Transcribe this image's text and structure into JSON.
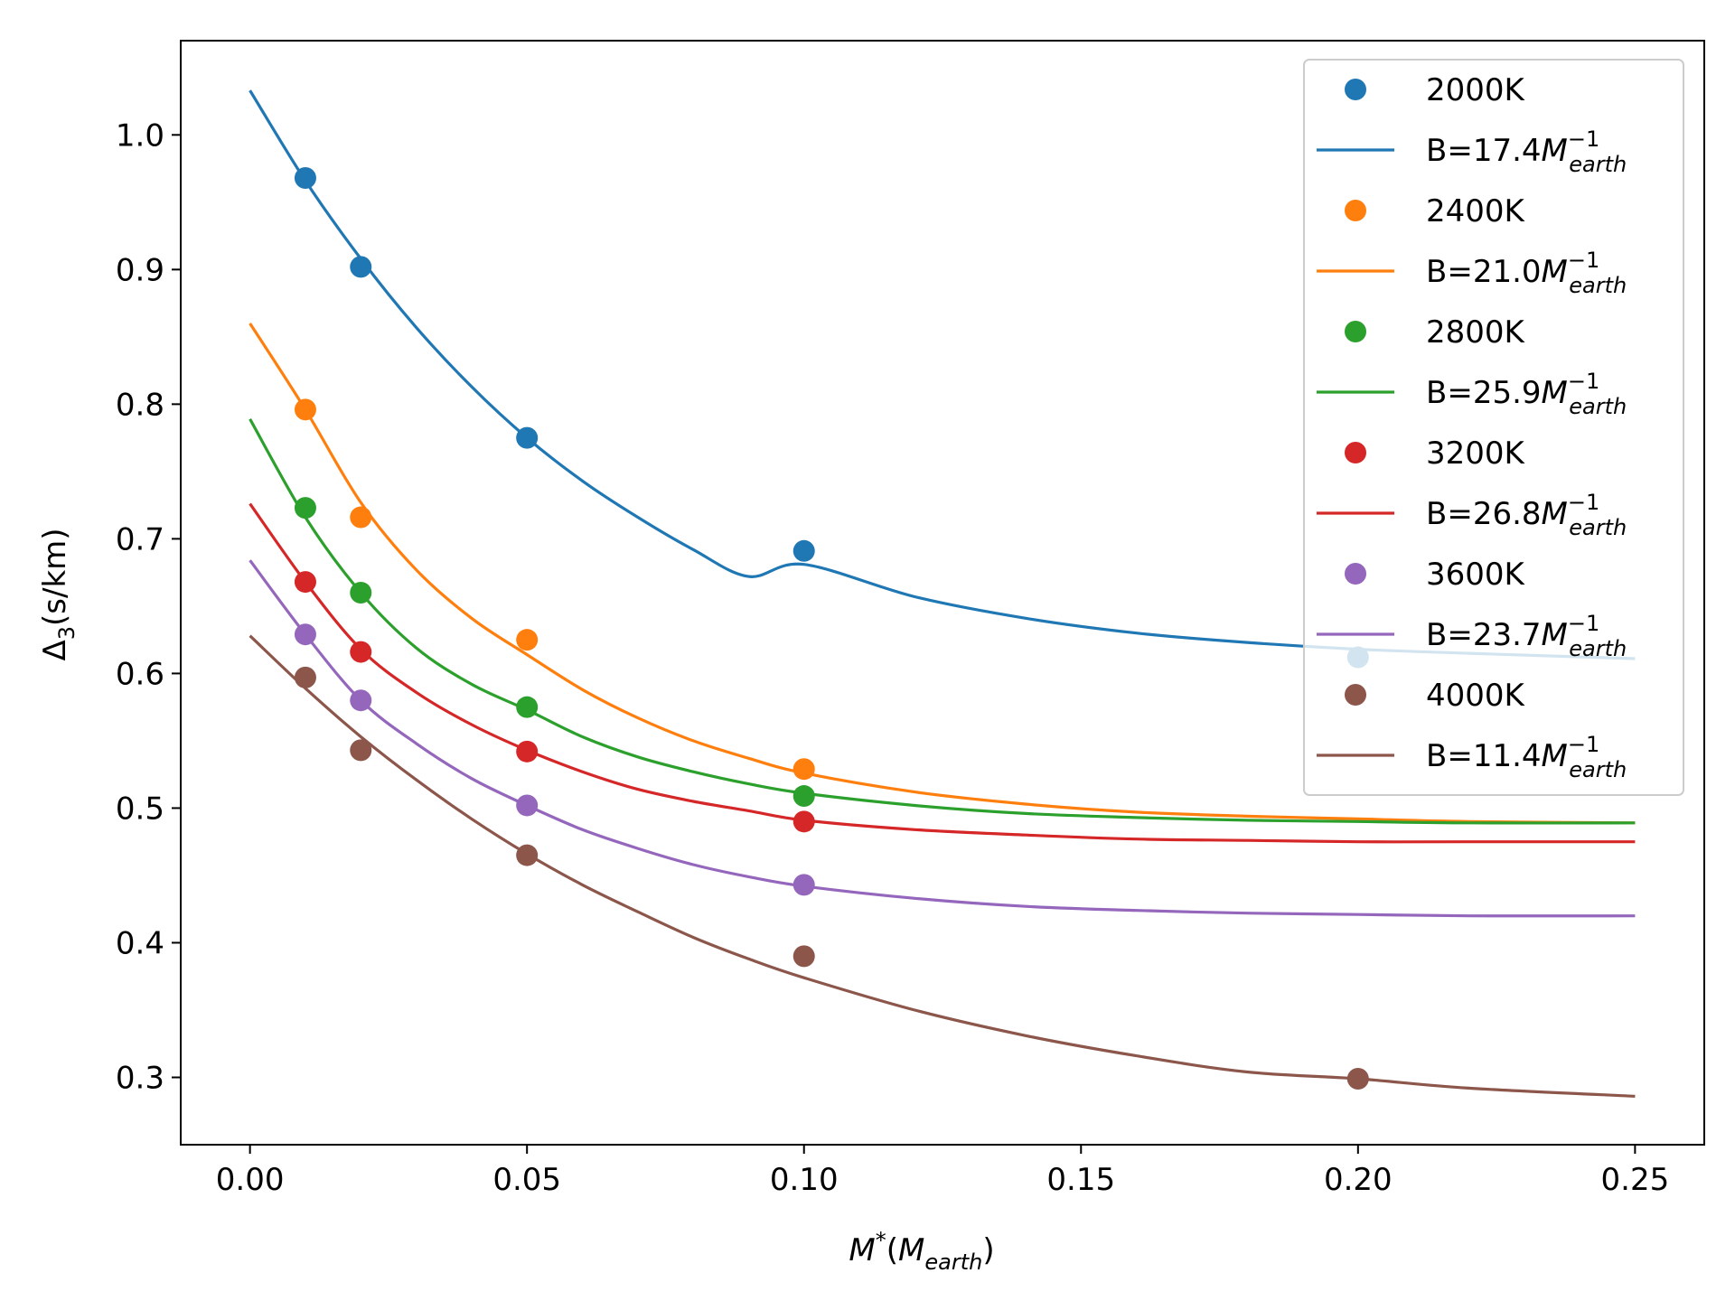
{
  "chart_data": {
    "type": "scatter",
    "xlabel": {
      "italic": "M",
      "sup": "*",
      "open": "(",
      "sub_main": "M",
      "sub": "earth",
      "close": ")"
    },
    "ylabel": {
      "main": "Δ",
      "sub": "3",
      "rest": "(s/km)"
    },
    "xlim": [
      -0.0125,
      0.2625
    ],
    "ylim": [
      0.25,
      1.07
    ],
    "xticks": [
      0.0,
      0.05,
      0.1,
      0.15,
      0.2,
      0.25
    ],
    "xtick_labels": [
      "0.00",
      "0.05",
      "0.10",
      "0.15",
      "0.20",
      "0.25"
    ],
    "yticks": [
      0.3,
      0.4,
      0.5,
      0.6,
      0.7,
      0.8,
      0.9,
      1.0
    ],
    "ytick_labels": [
      "0.3",
      "0.4",
      "0.5",
      "0.6",
      "0.7",
      "0.8",
      "0.9",
      "1.0"
    ],
    "legend_position": "top-right",
    "series": [
      {
        "name": "2000K",
        "color": "#1f77b4",
        "points": [
          [
            0.01,
            0.968
          ],
          [
            0.02,
            0.902
          ],
          [
            0.05,
            0.775
          ],
          [
            0.1,
            0.691
          ],
          [
            0.2,
            0.612
          ]
        ],
        "fit_label": {
          "pre": "B=17.4",
          "var": "M",
          "sup": "−1",
          "sub": "earth"
        },
        "fit": {
          "x": [
            0,
            0.01,
            0.02,
            0.03,
            0.04,
            0.05,
            0.06,
            0.07,
            0.08,
            0.09,
            0.1,
            0.12,
            0.14,
            0.16,
            0.18,
            0.2,
            0.22,
            0.25
          ],
          "y": [
            1.033,
            0.966,
            0.908,
            0.857,
            0.813,
            0.775,
            0.743,
            0.716,
            0.692,
            0.672,
            0.681,
            0.657,
            0.641,
            0.63,
            0.623,
            0.618,
            0.615,
            0.611
          ]
        }
      },
      {
        "name": "2400K",
        "color": "#ff7f0e",
        "points": [
          [
            0.01,
            0.796
          ],
          [
            0.02,
            0.716
          ],
          [
            0.05,
            0.625
          ],
          [
            0.1,
            0.529
          ]
        ],
        "fit_label": {
          "pre": "B=21.0",
          "var": "M",
          "sup": "−1",
          "sub": "earth"
        },
        "fit": {
          "x": [
            0,
            0.01,
            0.02,
            0.03,
            0.04,
            0.05,
            0.06,
            0.07,
            0.08,
            0.09,
            0.1,
            0.12,
            0.14,
            0.16,
            0.18,
            0.2,
            0.22,
            0.25
          ],
          "y": [
            0.86,
            0.796,
            0.727,
            0.677,
            0.641,
            0.614,
            0.588,
            0.567,
            0.55,
            0.537,
            0.526,
            0.512,
            0.503,
            0.497,
            0.494,
            0.492,
            0.49,
            0.489
          ]
        }
      },
      {
        "name": "2800K",
        "color": "#2ca02c",
        "points": [
          [
            0.01,
            0.723
          ],
          [
            0.02,
            0.66
          ],
          [
            0.05,
            0.575
          ],
          [
            0.1,
            0.509
          ]
        ],
        "fit_label": {
          "pre": "B=25.9",
          "var": "M",
          "sup": "−1",
          "sub": "earth"
        },
        "fit": {
          "x": [
            0,
            0.01,
            0.02,
            0.03,
            0.04,
            0.05,
            0.06,
            0.07,
            0.08,
            0.09,
            0.1,
            0.12,
            0.14,
            0.16,
            0.18,
            0.2,
            0.22,
            0.25
          ],
          "y": [
            0.789,
            0.716,
            0.66,
            0.619,
            0.592,
            0.573,
            0.553,
            0.538,
            0.527,
            0.518,
            0.511,
            0.502,
            0.496,
            0.493,
            0.491,
            0.49,
            0.489,
            0.489
          ]
        }
      },
      {
        "name": "3200K",
        "color": "#d62728",
        "points": [
          [
            0.01,
            0.668
          ],
          [
            0.02,
            0.616
          ],
          [
            0.05,
            0.542
          ],
          [
            0.1,
            0.49
          ]
        ],
        "fit_label": {
          "pre": "B=26.8",
          "var": "M",
          "sup": "−1",
          "sub": "earth"
        },
        "fit": {
          "x": [
            0,
            0.01,
            0.02,
            0.03,
            0.04,
            0.05,
            0.06,
            0.07,
            0.08,
            0.09,
            0.1,
            0.12,
            0.14,
            0.16,
            0.18,
            0.2,
            0.22,
            0.25
          ],
          "y": [
            0.726,
            0.668,
            0.618,
            0.586,
            0.562,
            0.543,
            0.527,
            0.514,
            0.505,
            0.498,
            0.491,
            0.484,
            0.48,
            0.477,
            0.476,
            0.475,
            0.475,
            0.475
          ]
        }
      },
      {
        "name": "3600K",
        "color": "#9467bd",
        "points": [
          [
            0.01,
            0.629
          ],
          [
            0.02,
            0.58
          ],
          [
            0.05,
            0.502
          ],
          [
            0.1,
            0.443
          ]
        ],
        "fit_label": {
          "pre": "B=23.7",
          "var": "M",
          "sup": "−1",
          "sub": "earth"
        },
        "fit": {
          "x": [
            0,
            0.01,
            0.02,
            0.03,
            0.04,
            0.05,
            0.06,
            0.07,
            0.08,
            0.09,
            0.1,
            0.12,
            0.14,
            0.16,
            0.18,
            0.2,
            0.22,
            0.25
          ],
          "y": [
            0.684,
            0.629,
            0.58,
            0.548,
            0.522,
            0.502,
            0.484,
            0.47,
            0.458,
            0.449,
            0.442,
            0.433,
            0.427,
            0.424,
            0.422,
            0.421,
            0.42,
            0.42
          ]
        }
      },
      {
        "name": "4000K",
        "color": "#8c564b",
        "points": [
          [
            0.01,
            0.597
          ],
          [
            0.02,
            0.543
          ],
          [
            0.05,
            0.465
          ],
          [
            0.1,
            0.39
          ],
          [
            0.2,
            0.299
          ]
        ],
        "fit_label": {
          "pre": "B=11.4",
          "var": "M",
          "sup": "−1",
          "sub": "earth"
        },
        "fit": {
          "x": [
            0,
            0.01,
            0.02,
            0.03,
            0.04,
            0.05,
            0.06,
            0.07,
            0.08,
            0.09,
            0.1,
            0.12,
            0.14,
            0.16,
            0.18,
            0.2,
            0.22,
            0.25
          ],
          "y": [
            0.628,
            0.589,
            0.553,
            0.521,
            0.492,
            0.466,
            0.443,
            0.423,
            0.404,
            0.388,
            0.374,
            0.35,
            0.331,
            0.316,
            0.304,
            0.299,
            0.292,
            0.286
          ]
        }
      }
    ]
  }
}
